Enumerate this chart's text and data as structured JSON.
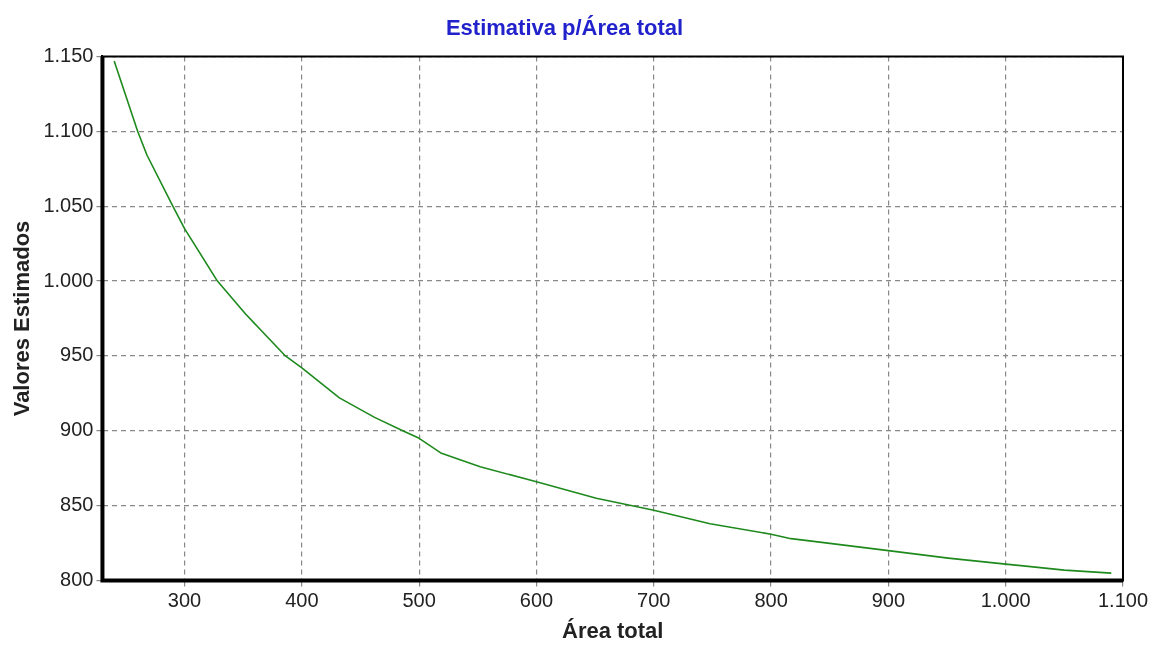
{
  "chart_data": {
    "type": "line",
    "title": "Estimativa p/Área total",
    "xlabel": "Área total",
    "ylabel": "Valores Estimados",
    "series": [
      {
        "color": "#1e8a1e",
        "x": [
          240,
          260,
          268,
          290,
          300,
          328,
          352,
          386,
          400,
          432,
          462,
          486,
          500,
          519,
          552,
          600,
          651,
          700,
          748,
          800,
          817,
          838,
          900,
          951,
          1000,
          1050,
          1090
        ],
        "values": [
          1147,
          1100,
          1084,
          1050,
          1035,
          1000,
          978,
          950,
          942,
          922,
          909,
          900,
          895,
          885,
          876,
          866,
          855,
          847,
          838,
          831,
          828,
          826,
          820,
          815,
          811,
          807,
          805
        ]
      }
    ],
    "xlim": [
      230,
      1100
    ],
    "xticks": [
      300,
      400,
      500,
      600,
      700,
      800,
      900,
      {
        "value": 1000,
        "label": "1.000"
      },
      {
        "value": 1100,
        "label": "1.100"
      }
    ],
    "ylim": [
      800,
      1150
    ],
    "yticks": [
      800,
      850,
      900,
      950,
      {
        "value": 1000,
        "label": "1.000"
      },
      {
        "value": 1050,
        "label": "1.050"
      },
      {
        "value": 1100,
        "label": "1.100"
      },
      {
        "value": 1150,
        "label": "1.150"
      }
    ],
    "grid": true,
    "legend": false,
    "marker": "none",
    "line_style": "solid"
  }
}
